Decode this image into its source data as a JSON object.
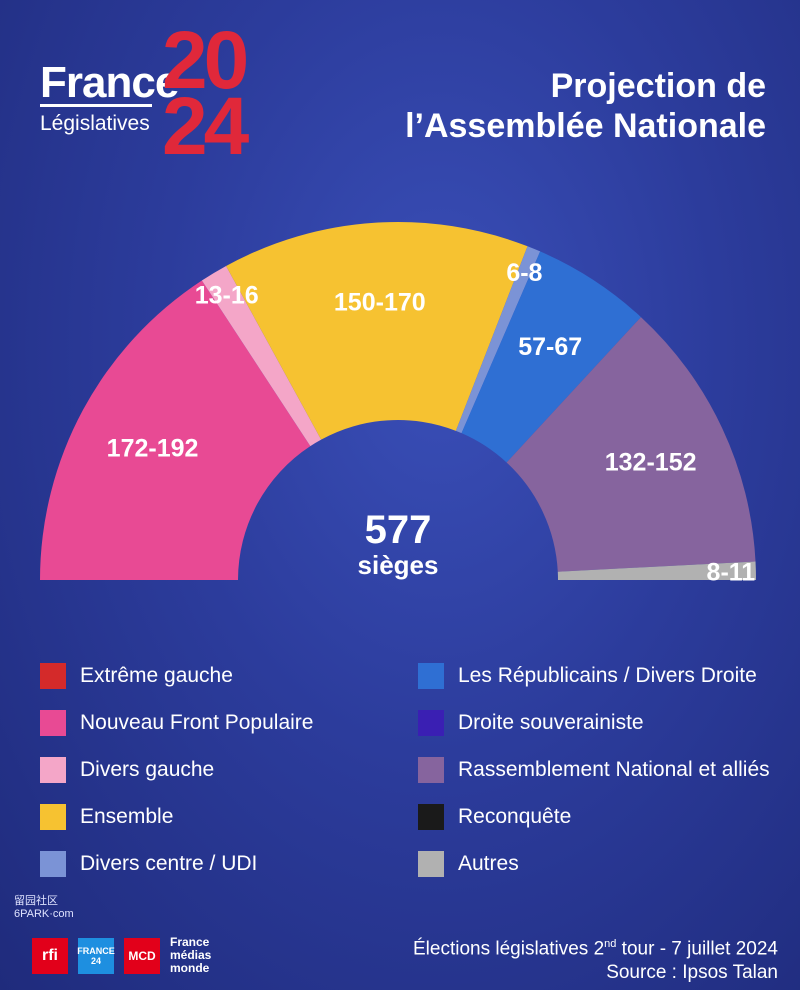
{
  "header": {
    "brand": "France",
    "subtitle": "Législatives",
    "year_line1": "20",
    "year_line2": "24",
    "title_line1": "Projection de",
    "title_line2": "l’Assemblée Nationale"
  },
  "center": {
    "total": "577",
    "label": "sièges"
  },
  "colors": {
    "extreme_gauche": "#d42a2a",
    "nfp": "#e84a94",
    "divers_gauche": "#f4a6c8",
    "ensemble": "#f6c231",
    "divers_centre": "#7b93d6",
    "lr": "#2f6fd3",
    "droite_souv": "#3a1fb3",
    "rn": "#86649e",
    "reconquete": "#1a1a1a",
    "autres": "#b1b1b1"
  },
  "chart_data": {
    "type": "pie",
    "title": "Projection de l’Assemblée Nationale",
    "total_seats": 577,
    "series": [
      {
        "name": "Nouveau Front Populaire",
        "label": "172-192",
        "min": 172,
        "max": 192,
        "color": "#e84a94"
      },
      {
        "name": "Divers gauche",
        "label": "13-16",
        "min": 13,
        "max": 16,
        "color": "#f4a6c8"
      },
      {
        "name": "Ensemble",
        "label": "150-170",
        "min": 150,
        "max": 170,
        "color": "#f6c231"
      },
      {
        "name": "Divers centre / UDI",
        "label": "6-8",
        "min": 6,
        "max": 8,
        "color": "#7b93d6"
      },
      {
        "name": "Les Républicains / Divers Droite",
        "label": "57-67",
        "min": 57,
        "max": 67,
        "color": "#2f6fd3"
      },
      {
        "name": "Rassemblement National et alliés",
        "label": "132-152",
        "min": 132,
        "max": 152,
        "color": "#86649e"
      },
      {
        "name": "Autres",
        "label": "8-11",
        "min": 8,
        "max": 11,
        "color": "#b1b1b1"
      }
    ]
  },
  "legend": {
    "left": [
      {
        "label": "Extrême gauche",
        "color": "#d42a2a"
      },
      {
        "label": "Nouveau Front Populaire",
        "color": "#e84a94"
      },
      {
        "label": "Divers gauche",
        "color": "#f4a6c8"
      },
      {
        "label": "Ensemble",
        "color": "#f6c231"
      },
      {
        "label": "Divers centre / UDI",
        "color": "#7b93d6"
      }
    ],
    "right": [
      {
        "label": "Les Républicains / Divers Droite",
        "color": "#2f6fd3"
      },
      {
        "label": "Droite souverainiste",
        "color": "#3a1fb3"
      },
      {
        "label": "Rassemblement National et alliés",
        "color": "#86649e"
      },
      {
        "label": "Reconquête",
        "color": "#1a1a1a"
      },
      {
        "label": "Autres",
        "color": "#b1b1b1"
      }
    ]
  },
  "footer": {
    "line1_pre": "Élections législatives 2",
    "line1_sup": "nd",
    "line1_post": " tour - 7 juillet 2024",
    "line2": "Source : Ipsos Talan",
    "logo_rfi": "rfi",
    "logo_f24": "FRANCE 24",
    "logo_mcd": "MCD",
    "fmm_1": "France",
    "fmm_2": "médias",
    "fmm_3": "monde",
    "watermark_1": "留园社区",
    "watermark_2": "6PARK·com"
  }
}
